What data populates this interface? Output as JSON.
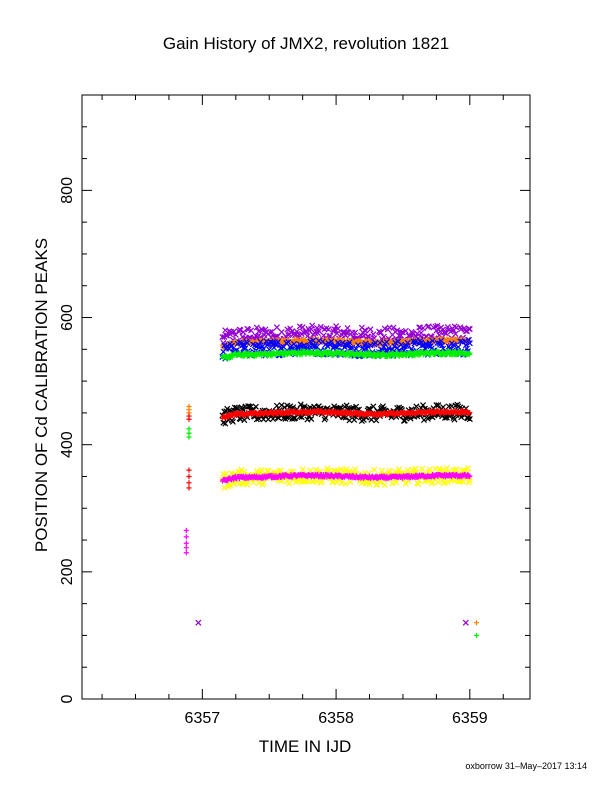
{
  "chart_data": {
    "type": "scatter",
    "title": "Gain History of JMX2, revolution 1821",
    "xlabel": "TIME IN IJD",
    "ylabel": "POSITION OF Cd CALIBRATION PEAKS",
    "xlim": [
      6356.1,
      6359.45
    ],
    "ylim": [
      0,
      950
    ],
    "x_ticks": [
      "6357",
      "6358",
      "6359"
    ],
    "y_ticks": [
      "0",
      "200",
      "400",
      "600",
      "800"
    ],
    "grid": false,
    "legend": "none",
    "series": [
      {
        "color": "#9400d3",
        "marker": "x",
        "level": 572,
        "scatter": 14,
        "x_start": 6357.15,
        "x_end": 6359.0,
        "extra_points": [
          [
            6356.97,
            120
          ],
          [
            6358.97,
            120
          ]
        ]
      },
      {
        "color": "#ff7f00",
        "marker": "+",
        "level": 562,
        "scatter": 3,
        "x_start": 6357.15,
        "x_end": 6359.0,
        "extra_points": [
          [
            6359.05,
            120
          ],
          [
            6356.9,
            460
          ],
          [
            6356.9,
            455
          ],
          [
            6356.9,
            450
          ]
        ]
      },
      {
        "color": "#0000ff",
        "marker": "x",
        "level": 552,
        "scatter": 12,
        "x_start": 6357.15,
        "x_end": 6359.0,
        "extra_points": []
      },
      {
        "color": "#00ee00",
        "marker": "+",
        "level": 543,
        "scatter": 3,
        "x_start": 6357.15,
        "x_end": 6359.0,
        "extra_points": [
          [
            6359.05,
            100
          ],
          [
            6356.9,
            425
          ],
          [
            6356.9,
            418
          ],
          [
            6356.9,
            412
          ]
        ]
      },
      {
        "color": "#000000",
        "marker": "x",
        "level": 450,
        "scatter": 12,
        "x_start": 6357.15,
        "x_end": 6359.0,
        "extra_points": []
      },
      {
        "color": "#ff0000",
        "marker": "+",
        "level": 450,
        "scatter": 2,
        "x_start": 6357.15,
        "x_end": 6359.0,
        "extra_points": [
          [
            6356.9,
            360
          ],
          [
            6356.9,
            350
          ],
          [
            6356.9,
            340
          ],
          [
            6356.9,
            332
          ],
          [
            6356.9,
            445
          ],
          [
            6356.9,
            440
          ]
        ]
      },
      {
        "color": "#ffff00",
        "marker": "x",
        "level": 350,
        "scatter": 12,
        "x_start": 6357.15,
        "x_end": 6359.0,
        "extra_points": []
      },
      {
        "color": "#ff00ff",
        "marker": "+",
        "level": 350,
        "scatter": 2,
        "x_start": 6357.15,
        "x_end": 6359.0,
        "extra_points": [
          [
            6356.88,
            265
          ],
          [
            6356.88,
            255
          ],
          [
            6356.88,
            245
          ],
          [
            6356.88,
            238
          ],
          [
            6356.88,
            230
          ]
        ]
      }
    ]
  },
  "footer": {
    "credit": "oxborrow 31–May–2017 13:14"
  }
}
